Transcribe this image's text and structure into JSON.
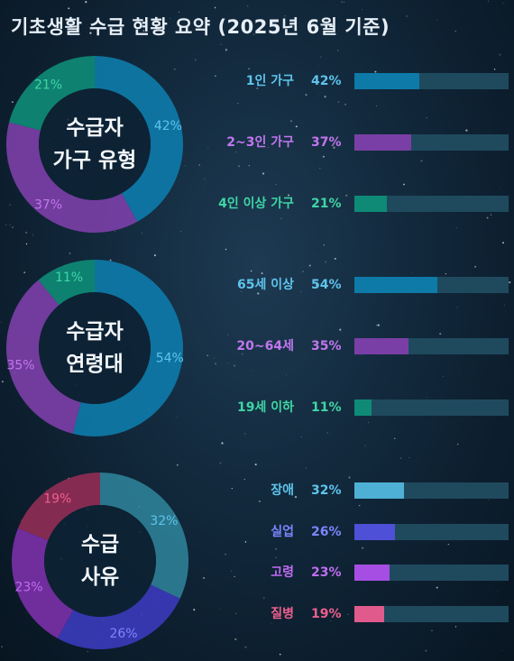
{
  "title": "기초생활 수급 현황 요약 (2025년 6월 기준)",
  "chart_data": [
    {
      "type": "pie",
      "center_label": "수급자\n가구 유형",
      "categories": [
        "1인 가구",
        "2~3인 가구",
        "4인 이상 가구"
      ],
      "values": [
        42,
        37,
        21
      ],
      "unit": "%",
      "colors": [
        "#0e7aa8",
        "#7a3fa6",
        "#0e8a76"
      ],
      "label_colors": [
        "#5fc4ec",
        "#c276ef",
        "#3fd6a6"
      ]
    },
    {
      "type": "pie",
      "center_label": "수급자\n연령대",
      "categories": [
        "65세 이상",
        "20~64세",
        "19세 이하"
      ],
      "values": [
        54,
        35,
        11
      ],
      "unit": "%",
      "colors": [
        "#0e7aa8",
        "#7a3fa6",
        "#0e8a76"
      ],
      "label_colors": [
        "#5fc4ec",
        "#c276ef",
        "#3fd6a6"
      ]
    },
    {
      "type": "pie",
      "center_label": "수급\n사유",
      "categories": [
        "장애",
        "실업",
        "고령",
        "질병"
      ],
      "values": [
        32,
        26,
        23,
        19
      ],
      "unit": "%",
      "colors": [
        "#2d7f95",
        "#3a3ab8",
        "#7a2fa6",
        "#8f2d55"
      ],
      "label_colors": [
        "#5fc4ec",
        "#7c86ff",
        "#c06cf2",
        "#ee5f8e"
      ],
      "bar_colors": [
        "#4fb0d6",
        "#4e50d8",
        "#a64ee4",
        "#e05a8c"
      ]
    }
  ]
}
